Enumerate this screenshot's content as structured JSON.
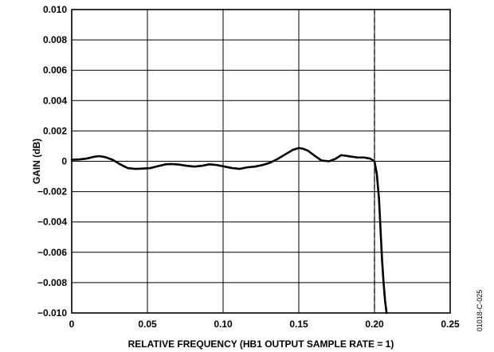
{
  "chart_data": {
    "type": "line",
    "title": "",
    "xlabel": "RELATIVE FREQUENCY (HB1 OUTPUT SAMPLE RATE = 1)",
    "ylabel": "GAIN (dB)",
    "xlim": [
      0,
      0.25
    ],
    "ylim": [
      -0.01,
      0.01
    ],
    "x_ticks": [
      0,
      0.05,
      0.1,
      0.15,
      0.2,
      0.25
    ],
    "x_tick_labels": [
      "0",
      "0.05",
      "0.10",
      "0.15",
      "0.20",
      "0.25"
    ],
    "y_ticks": [
      0.01,
      0.008,
      0.006,
      0.004,
      0.002,
      0,
      -0.002,
      -0.004,
      -0.006,
      -0.008,
      -0.01
    ],
    "y_tick_labels": [
      "0.010",
      "0.008",
      "0.006",
      "0.004",
      "0.002",
      "0",
      "−0.002",
      "−0.004",
      "−0.006",
      "−0.008",
      "−0.010"
    ],
    "grid": true,
    "reference_line": {
      "x": 0.2,
      "style": "dashed"
    },
    "series": [
      {
        "x": [
          0,
          0.005,
          0.01,
          0.015,
          0.018,
          0.022,
          0.027,
          0.032,
          0.037,
          0.042,
          0.047,
          0.052,
          0.057,
          0.062,
          0.066,
          0.071,
          0.076,
          0.081,
          0.086,
          0.091,
          0.096,
          0.101,
          0.106,
          0.111,
          0.116,
          0.121,
          0.126,
          0.131,
          0.136,
          0.141,
          0.146,
          0.15,
          0.153,
          0.156,
          0.16,
          0.165,
          0.17,
          0.174,
          0.178,
          0.182,
          0.185,
          0.189,
          0.193,
          0.197,
          0.2,
          0.2015,
          0.203,
          0.204,
          0.205,
          0.206,
          0.207,
          0.208
        ],
        "y": [
          0.0001,
          0.00012,
          0.00018,
          0.0003,
          0.00034,
          0.00028,
          0.0001,
          -0.0002,
          -0.00045,
          -0.0005,
          -0.00048,
          -0.00045,
          -0.00032,
          -0.0002,
          -0.00018,
          -0.00022,
          -0.0003,
          -0.00035,
          -0.0003,
          -0.0002,
          -0.00025,
          -0.00035,
          -0.00045,
          -0.0005,
          -0.0004,
          -0.00035,
          -0.00025,
          -0.0001,
          0.00015,
          0.00045,
          0.00075,
          0.00088,
          0.00082,
          0.0007,
          0.0004,
          5e-05,
          0.0,
          0.00015,
          0.0004,
          0.00035,
          0.0003,
          0.00025,
          0.00025,
          0.00018,
          0.0,
          -0.0008,
          -0.0025,
          -0.0045,
          -0.0065,
          -0.008,
          -0.0092,
          -0.01
        ]
      }
    ]
  },
  "figure_id": "01018-C-025"
}
